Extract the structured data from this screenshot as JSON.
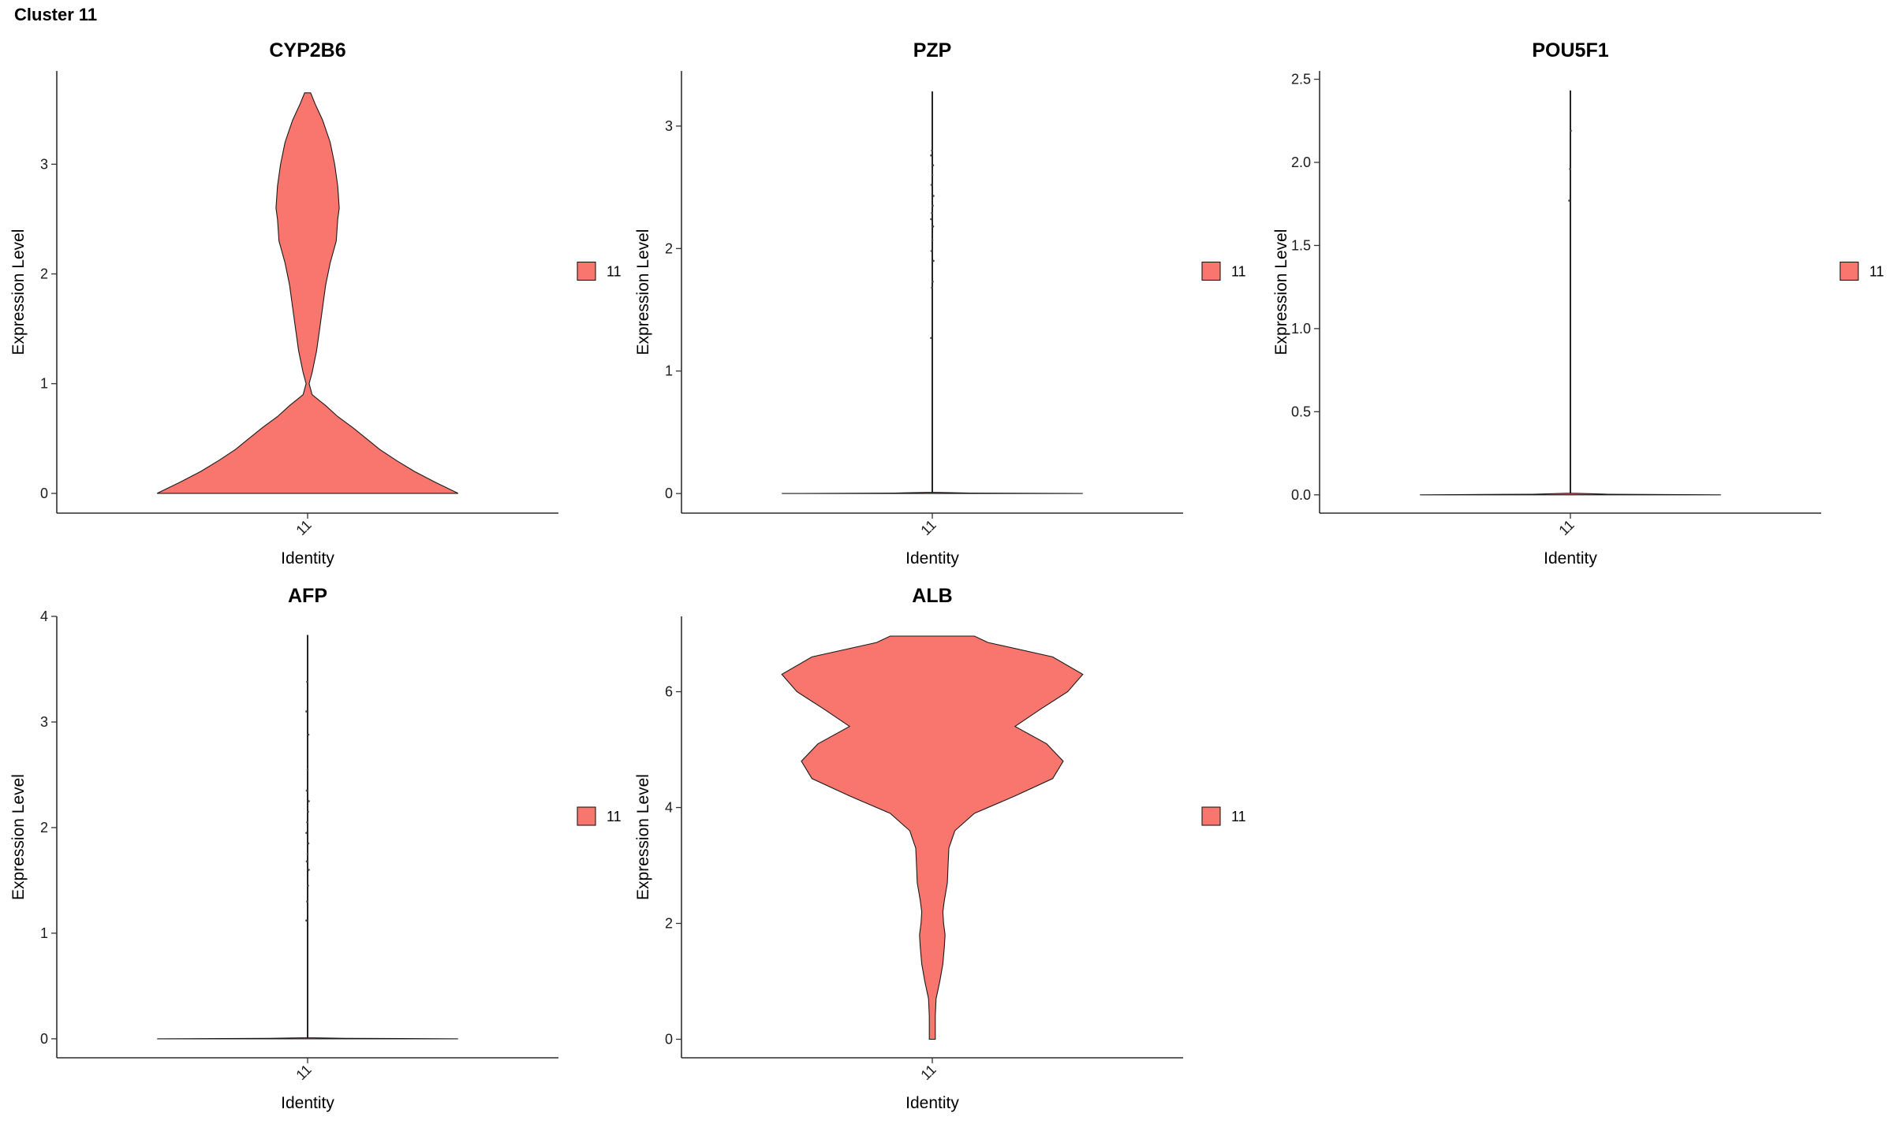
{
  "page": {
    "title": "Cluster 11"
  },
  "chart_data": [
    {
      "type": "violin",
      "title": "CYP2B6",
      "xlabel": "Identity",
      "ylabel": "Expression Level",
      "categories": [
        "11"
      ],
      "ylim": [
        -0.18,
        3.85
      ],
      "yticks": [
        0,
        1,
        2,
        3
      ],
      "ytick_labels": [
        "0",
        "1",
        "2",
        "3"
      ],
      "fill": "#F8766D",
      "legend": {
        "entries": [
          "11"
        ],
        "placement": "right"
      },
      "density": [
        [
          0.0,
          1.0
        ],
        [
          0.1,
          0.85
        ],
        [
          0.2,
          0.71
        ],
        [
          0.3,
          0.59
        ],
        [
          0.4,
          0.48
        ],
        [
          0.5,
          0.39
        ],
        [
          0.6,
          0.3
        ],
        [
          0.7,
          0.2
        ],
        [
          0.8,
          0.12
        ],
        [
          0.9,
          0.03
        ],
        [
          1.0,
          0.01
        ],
        [
          1.1,
          0.03
        ],
        [
          1.3,
          0.06
        ],
        [
          1.5,
          0.08
        ],
        [
          1.7,
          0.1
        ],
        [
          1.9,
          0.12
        ],
        [
          2.1,
          0.15
        ],
        [
          2.3,
          0.19
        ],
        [
          2.5,
          0.2
        ],
        [
          2.6,
          0.21
        ],
        [
          2.8,
          0.2
        ],
        [
          3.0,
          0.18
        ],
        [
          3.2,
          0.15
        ],
        [
          3.4,
          0.1
        ],
        [
          3.55,
          0.05
        ],
        [
          3.65,
          0.02
        ]
      ],
      "points": []
    },
    {
      "type": "violin",
      "title": "PZP",
      "xlabel": "Identity",
      "ylabel": "Expression Level",
      "categories": [
        "11"
      ],
      "ylim": [
        -0.16,
        3.45
      ],
      "yticks": [
        0,
        1,
        2,
        3
      ],
      "ytick_labels": [
        "0",
        "1",
        "2",
        "3"
      ],
      "fill": "#F8766D",
      "legend": {
        "entries": [
          "11"
        ],
        "placement": "right"
      },
      "density": [
        [
          0.0,
          1.0
        ],
        [
          0.004,
          0.25
        ],
        [
          0.01,
          0.002
        ],
        [
          3.28,
          0.002
        ]
      ],
      "points": [
        1.27,
        1.68,
        1.73,
        1.9,
        1.98,
        2.07,
        2.18,
        2.24,
        2.29,
        2.35,
        2.43,
        2.52,
        2.6,
        2.68,
        2.76,
        2.8
      ]
    },
    {
      "type": "violin",
      "title": "POU5F1",
      "xlabel": "Identity",
      "ylabel": "Expression Level",
      "categories": [
        "11"
      ],
      "ylim": [
        -0.11,
        2.55
      ],
      "yticks": [
        0.0,
        0.5,
        1.0,
        1.5,
        2.0,
        2.5
      ],
      "ytick_labels": [
        "0.0",
        "0.5",
        "1.0",
        "1.5",
        "2.0",
        "2.5"
      ],
      "fill": "#F8766D",
      "legend": {
        "entries": [
          "11"
        ],
        "placement": "right"
      },
      "density": [
        [
          0.0,
          1.0
        ],
        [
          0.004,
          0.25
        ],
        [
          0.01,
          0.002
        ],
        [
          2.43,
          0.002
        ]
      ],
      "points": [
        1.77,
        1.96,
        2.19
      ]
    },
    {
      "type": "violin",
      "title": "AFP",
      "xlabel": "Identity",
      "ylabel": "Expression Level",
      "categories": [
        "11"
      ],
      "ylim": [
        -0.18,
        4.0
      ],
      "yticks": [
        0,
        1,
        2,
        3,
        4
      ],
      "ytick_labels": [
        "0",
        "1",
        "2",
        "3",
        "4"
      ],
      "fill": "#F8766D",
      "legend": {
        "entries": [
          "11"
        ],
        "placement": "right"
      },
      "density": [
        [
          0.0,
          1.0
        ],
        [
          0.004,
          0.25
        ],
        [
          0.01,
          0.002
        ],
        [
          3.82,
          0.002
        ]
      ],
      "points": [
        1.12,
        1.3,
        1.45,
        1.6,
        1.68,
        1.75,
        1.85,
        1.95,
        2.05,
        2.15,
        2.25,
        2.35,
        2.55,
        2.88,
        3.1,
        3.38
      ]
    },
    {
      "type": "violin",
      "title": "ALB",
      "xlabel": "Identity",
      "ylabel": "Expression Level",
      "categories": [
        "11"
      ],
      "ylim": [
        -0.32,
        7.3
      ],
      "yticks": [
        0,
        2,
        4,
        6
      ],
      "ytick_labels": [
        "0",
        "2",
        "4",
        "6"
      ],
      "fill": "#F8766D",
      "legend": {
        "entries": [
          "11"
        ],
        "placement": "right"
      },
      "density": [
        [
          0.0,
          0.02
        ],
        [
          0.4,
          0.02
        ],
        [
          0.7,
          0.025
        ],
        [
          1.0,
          0.05
        ],
        [
          1.3,
          0.07
        ],
        [
          1.6,
          0.08
        ],
        [
          1.8,
          0.085
        ],
        [
          2.0,
          0.075
        ],
        [
          2.2,
          0.07
        ],
        [
          2.4,
          0.08
        ],
        [
          2.7,
          0.1
        ],
        [
          3.0,
          0.105
        ],
        [
          3.3,
          0.11
        ],
        [
          3.6,
          0.15
        ],
        [
          3.9,
          0.28
        ],
        [
          4.2,
          0.55
        ],
        [
          4.5,
          0.8
        ],
        [
          4.8,
          0.87
        ],
        [
          5.1,
          0.76
        ],
        [
          5.4,
          0.55
        ],
        [
          5.7,
          0.72
        ],
        [
          6.0,
          0.9
        ],
        [
          6.3,
          1.0
        ],
        [
          6.6,
          0.8
        ],
        [
          6.85,
          0.37
        ],
        [
          6.96,
          0.28
        ]
      ],
      "points": []
    }
  ]
}
